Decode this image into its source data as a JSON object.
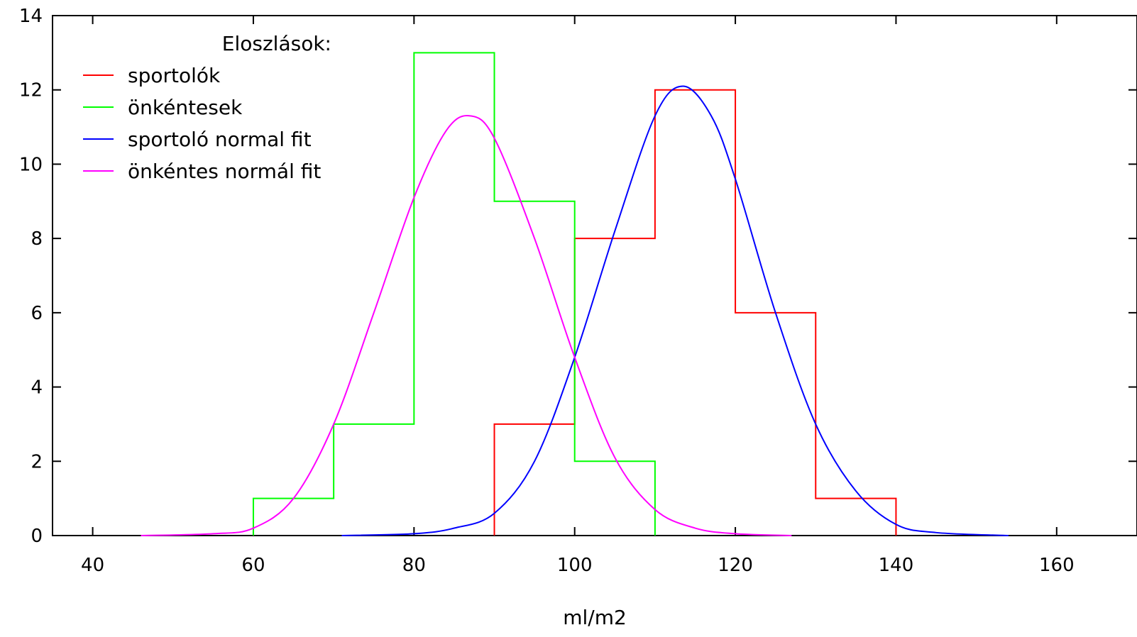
{
  "chart_data": {
    "type": "line",
    "title": "",
    "xlabel": "ml/m2",
    "ylabel": "",
    "xlim": [
      35,
      170
    ],
    "ylim": [
      0,
      14
    ],
    "grid": false,
    "xticks": [
      40,
      60,
      80,
      100,
      120,
      140,
      160
    ],
    "yticks": [
      0,
      2,
      4,
      6,
      8,
      10,
      12,
      14
    ],
    "legend": {
      "title": "Eloszlások:",
      "placement": "top-left",
      "entries": [
        "sportolók",
        "önkéntesek",
        "sportoló normal fit",
        "önkéntes normál fit"
      ]
    },
    "series": [
      {
        "name": "sportolók",
        "style": "histogram-step",
        "color": "#ff0000",
        "bins": [
          [
            90,
            100,
            3
          ],
          [
            100,
            110,
            8
          ],
          [
            110,
            120,
            12
          ],
          [
            120,
            130,
            6
          ],
          [
            130,
            140,
            1
          ]
        ]
      },
      {
        "name": "önkéntesek",
        "style": "histogram-step",
        "color": "#00ff00",
        "bins": [
          [
            60,
            70,
            1
          ],
          [
            70,
            80,
            3
          ],
          [
            80,
            90,
            13
          ],
          [
            90,
            100,
            9
          ],
          [
            100,
            110,
            2
          ]
        ]
      },
      {
        "name": "sportoló normal fit",
        "style": "curve",
        "color": "#0000ff",
        "x": [
          71,
          80,
          85,
          90,
          95,
          100,
          105,
          110,
          113.5,
          117,
          120,
          125,
          130,
          135,
          140,
          145,
          154
        ],
        "y": [
          0.0,
          0.05,
          0.2,
          0.6,
          2.0,
          4.8,
          8.2,
          11.3,
          12.1,
          11.3,
          9.6,
          6.0,
          3.0,
          1.2,
          0.3,
          0.08,
          0.0
        ]
      },
      {
        "name": "önkéntes normál fit",
        "style": "curve",
        "color": "#ff00ff",
        "x": [
          46,
          55,
          60,
          65,
          70,
          75,
          80,
          84,
          87,
          90,
          95,
          100,
          105,
          110,
          115,
          120,
          127
        ],
        "y": [
          0.0,
          0.05,
          0.2,
          1.0,
          3.0,
          6.0,
          9.1,
          10.9,
          11.3,
          10.7,
          8.0,
          4.8,
          2.1,
          0.7,
          0.2,
          0.05,
          0.0
        ]
      }
    ]
  }
}
